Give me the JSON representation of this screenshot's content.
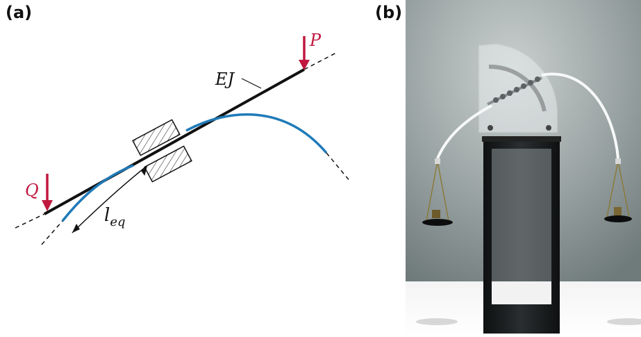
{
  "panels": {
    "a": {
      "label": "(a)"
    },
    "b": {
      "label": "(b)"
    }
  },
  "diagram": {
    "load_p": "P",
    "load_q": "Q",
    "stiffness": "EJ",
    "length_base": "l",
    "length_sub": "eq",
    "colors": {
      "rod": "#111111",
      "deflected": "#1f7ab8",
      "load": "#c0183f"
    }
  },
  "photo": {
    "description_hidden": ""
  }
}
